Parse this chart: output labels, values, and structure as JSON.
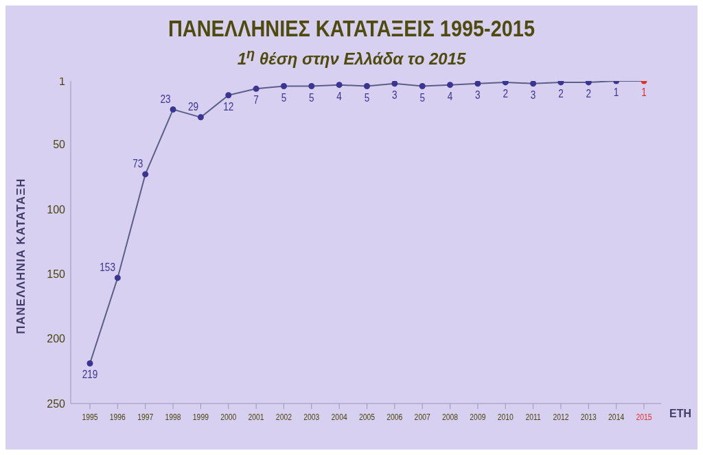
{
  "chart_data": {
    "type": "line",
    "title": "ΠΑΝΕΛΛΗΝΙΕΣ ΚΑΤΑΤΑΞΕΙΣ 1995-2015",
    "subtitle": "1$^{η}$ θέση στην Ελλάδα το 2015",
    "xlabel": "ΕΤΗ",
    "ylabel": "ΠΑΝΕΛΛΗΝΙΑ ΚΑΤΑΤΑΞΗ",
    "categories": [
      "1995",
      "1996",
      "1997",
      "1998",
      "1999",
      "2000",
      "2001",
      "2002",
      "2003",
      "2004",
      "2005",
      "2006",
      "2007",
      "2008",
      "2009",
      "2010",
      "2011",
      "2012",
      "2013",
      "2014",
      "2015"
    ],
    "series": [
      {
        "color": "#3b3592",
        "values": [
          219,
          153,
          73,
          23,
          29,
          12,
          7,
          5,
          5,
          4,
          5,
          3,
          5,
          4,
          3,
          2,
          3,
          2,
          2,
          1,
          1
        ],
        "colors": [
          "#3b3592",
          "#3b3592",
          "#3b3592",
          "#3b3592",
          "#3b3592",
          "#3b3592",
          "#3b3592",
          "#3b3592",
          "#3b3592",
          "#3b3592",
          "#3b3592",
          "#3b3592",
          "#3b3592",
          "#3b3592",
          "#3b3592",
          "#3b3592",
          "#3b3592",
          "#3b3592",
          "#3b3592",
          "#3b3592",
          "#e0302a"
        ]
      }
    ],
    "ylim": [
      250,
      1
    ],
    "yticks": [
      1,
      50,
      100,
      150,
      200,
      250
    ],
    "grid": false,
    "legend": false,
    "marker": "circle",
    "line_style": "solid",
    "data_labels": true
  }
}
